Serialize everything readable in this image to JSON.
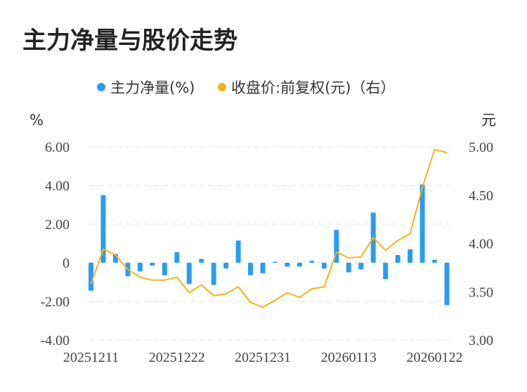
{
  "title": "主力净量与股价走势",
  "legend": {
    "bar_label": "主力净量(%)",
    "line_label": "收盘价:前复权(元)（右）"
  },
  "units": {
    "left": "%",
    "right": "元"
  },
  "colors": {
    "bar": "#2b9cf0",
    "line": "#f5b31b"
  },
  "chart_data": {
    "type": "bar+line",
    "x_tick_labels": [
      "20251211",
      "20251222",
      "20251231",
      "20260113",
      "20260122"
    ],
    "left_axis": {
      "unit": "%",
      "min": -4,
      "max": 6,
      "ticks": [
        "-4.00",
        "-2.00",
        "0",
        "2.00",
        "4.00",
        "6.00"
      ]
    },
    "right_axis": {
      "unit": "元",
      "min": 3.0,
      "max": 5.0,
      "ticks": [
        "3.00",
        "3.50",
        "4.00",
        "4.50",
        "5.00"
      ]
    },
    "grid": true,
    "legend_position": "top",
    "series": [
      {
        "name": "主力净量(%)",
        "type": "bar",
        "axis": "left",
        "values": [
          -1.45,
          3.5,
          0.45,
          -0.7,
          -0.45,
          -0.15,
          -0.65,
          0.55,
          -1.1,
          0.2,
          -1.15,
          -0.3,
          1.15,
          -0.65,
          -0.55,
          0.05,
          -0.2,
          -0.2,
          0.1,
          -0.3,
          1.7,
          -0.5,
          -0.35,
          2.6,
          -0.85,
          0.4,
          0.7,
          4.05,
          0.15,
          -2.2
        ]
      },
      {
        "name": "收盘价:前复权(元)（右）",
        "type": "line",
        "axis": "right",
        "values": [
          3.58,
          3.94,
          3.88,
          3.73,
          3.65,
          3.62,
          3.62,
          3.65,
          3.49,
          3.57,
          3.46,
          3.48,
          3.55,
          3.39,
          3.34,
          3.41,
          3.49,
          3.44,
          3.53,
          3.55,
          3.91,
          3.85,
          3.86,
          4.06,
          3.93,
          4.03,
          4.1,
          4.58,
          4.97,
          4.94
        ]
      }
    ]
  }
}
